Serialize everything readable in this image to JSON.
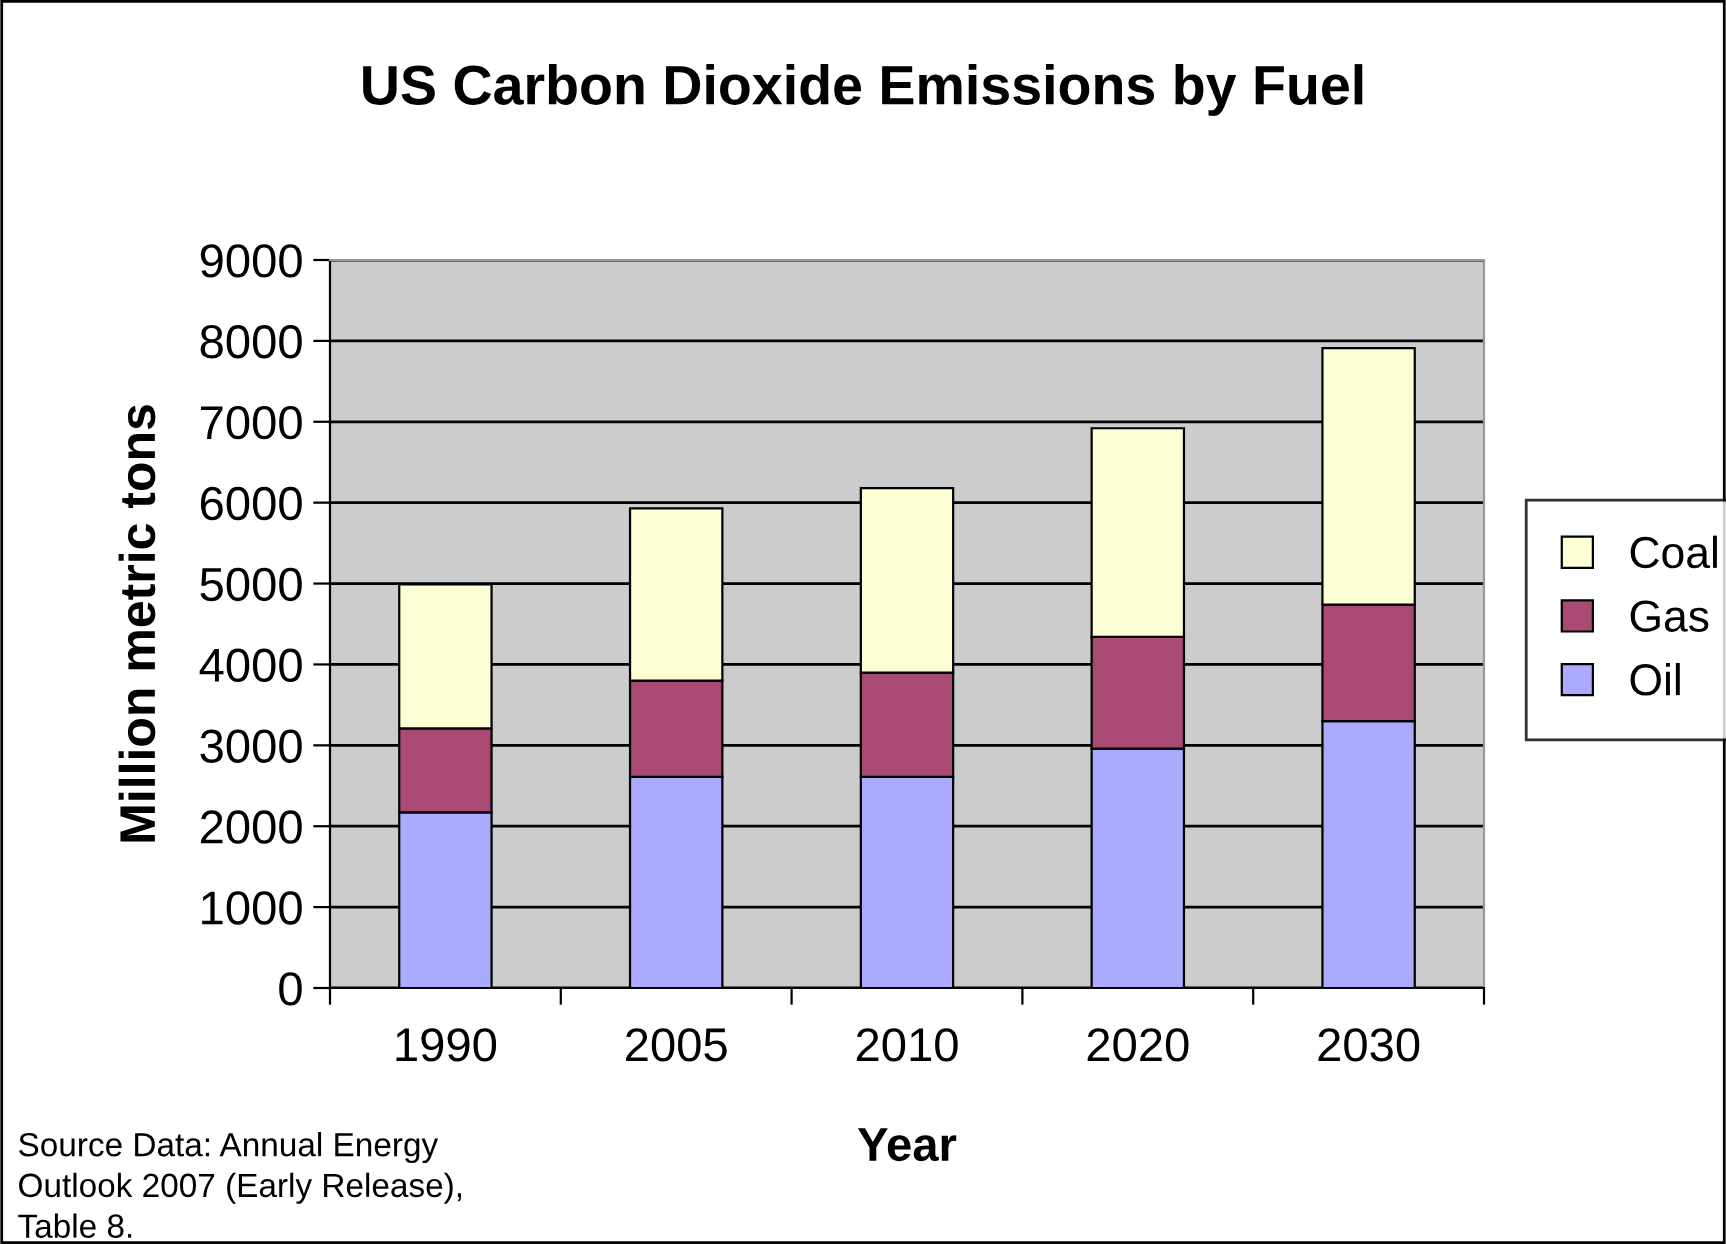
{
  "chart_data": {
    "type": "bar",
    "title": "US Carbon Dioxide Emissions by Fuel",
    "xlabel": "Year",
    "ylabel": "Million metric tons",
    "categories": [
      "1990",
      "2005",
      "2010",
      "2020",
      "2030"
    ],
    "stacked": true,
    "series": [
      {
        "name": "Oil",
        "color": "#aaaaff",
        "values": [
          2170,
          2610,
          2610,
          2960,
          3300
        ]
      },
      {
        "name": "Gas",
        "color": "#a84a74",
        "values": [
          1040,
          1190,
          1290,
          1380,
          1440
        ]
      },
      {
        "name": "Coal",
        "color": "#ffffd6",
        "values": [
          1780,
          2130,
          2280,
          2580,
          3170
        ]
      }
    ],
    "ylim": [
      0,
      9000
    ],
    "yticks": [
      0,
      1000,
      2000,
      3000,
      4000,
      5000,
      6000,
      7000,
      8000,
      9000
    ],
    "grid": "y",
    "legend": "right",
    "annotations": [
      "Source Data: Annual Energy Outlook 2007 (Early Release), Table 8."
    ]
  }
}
